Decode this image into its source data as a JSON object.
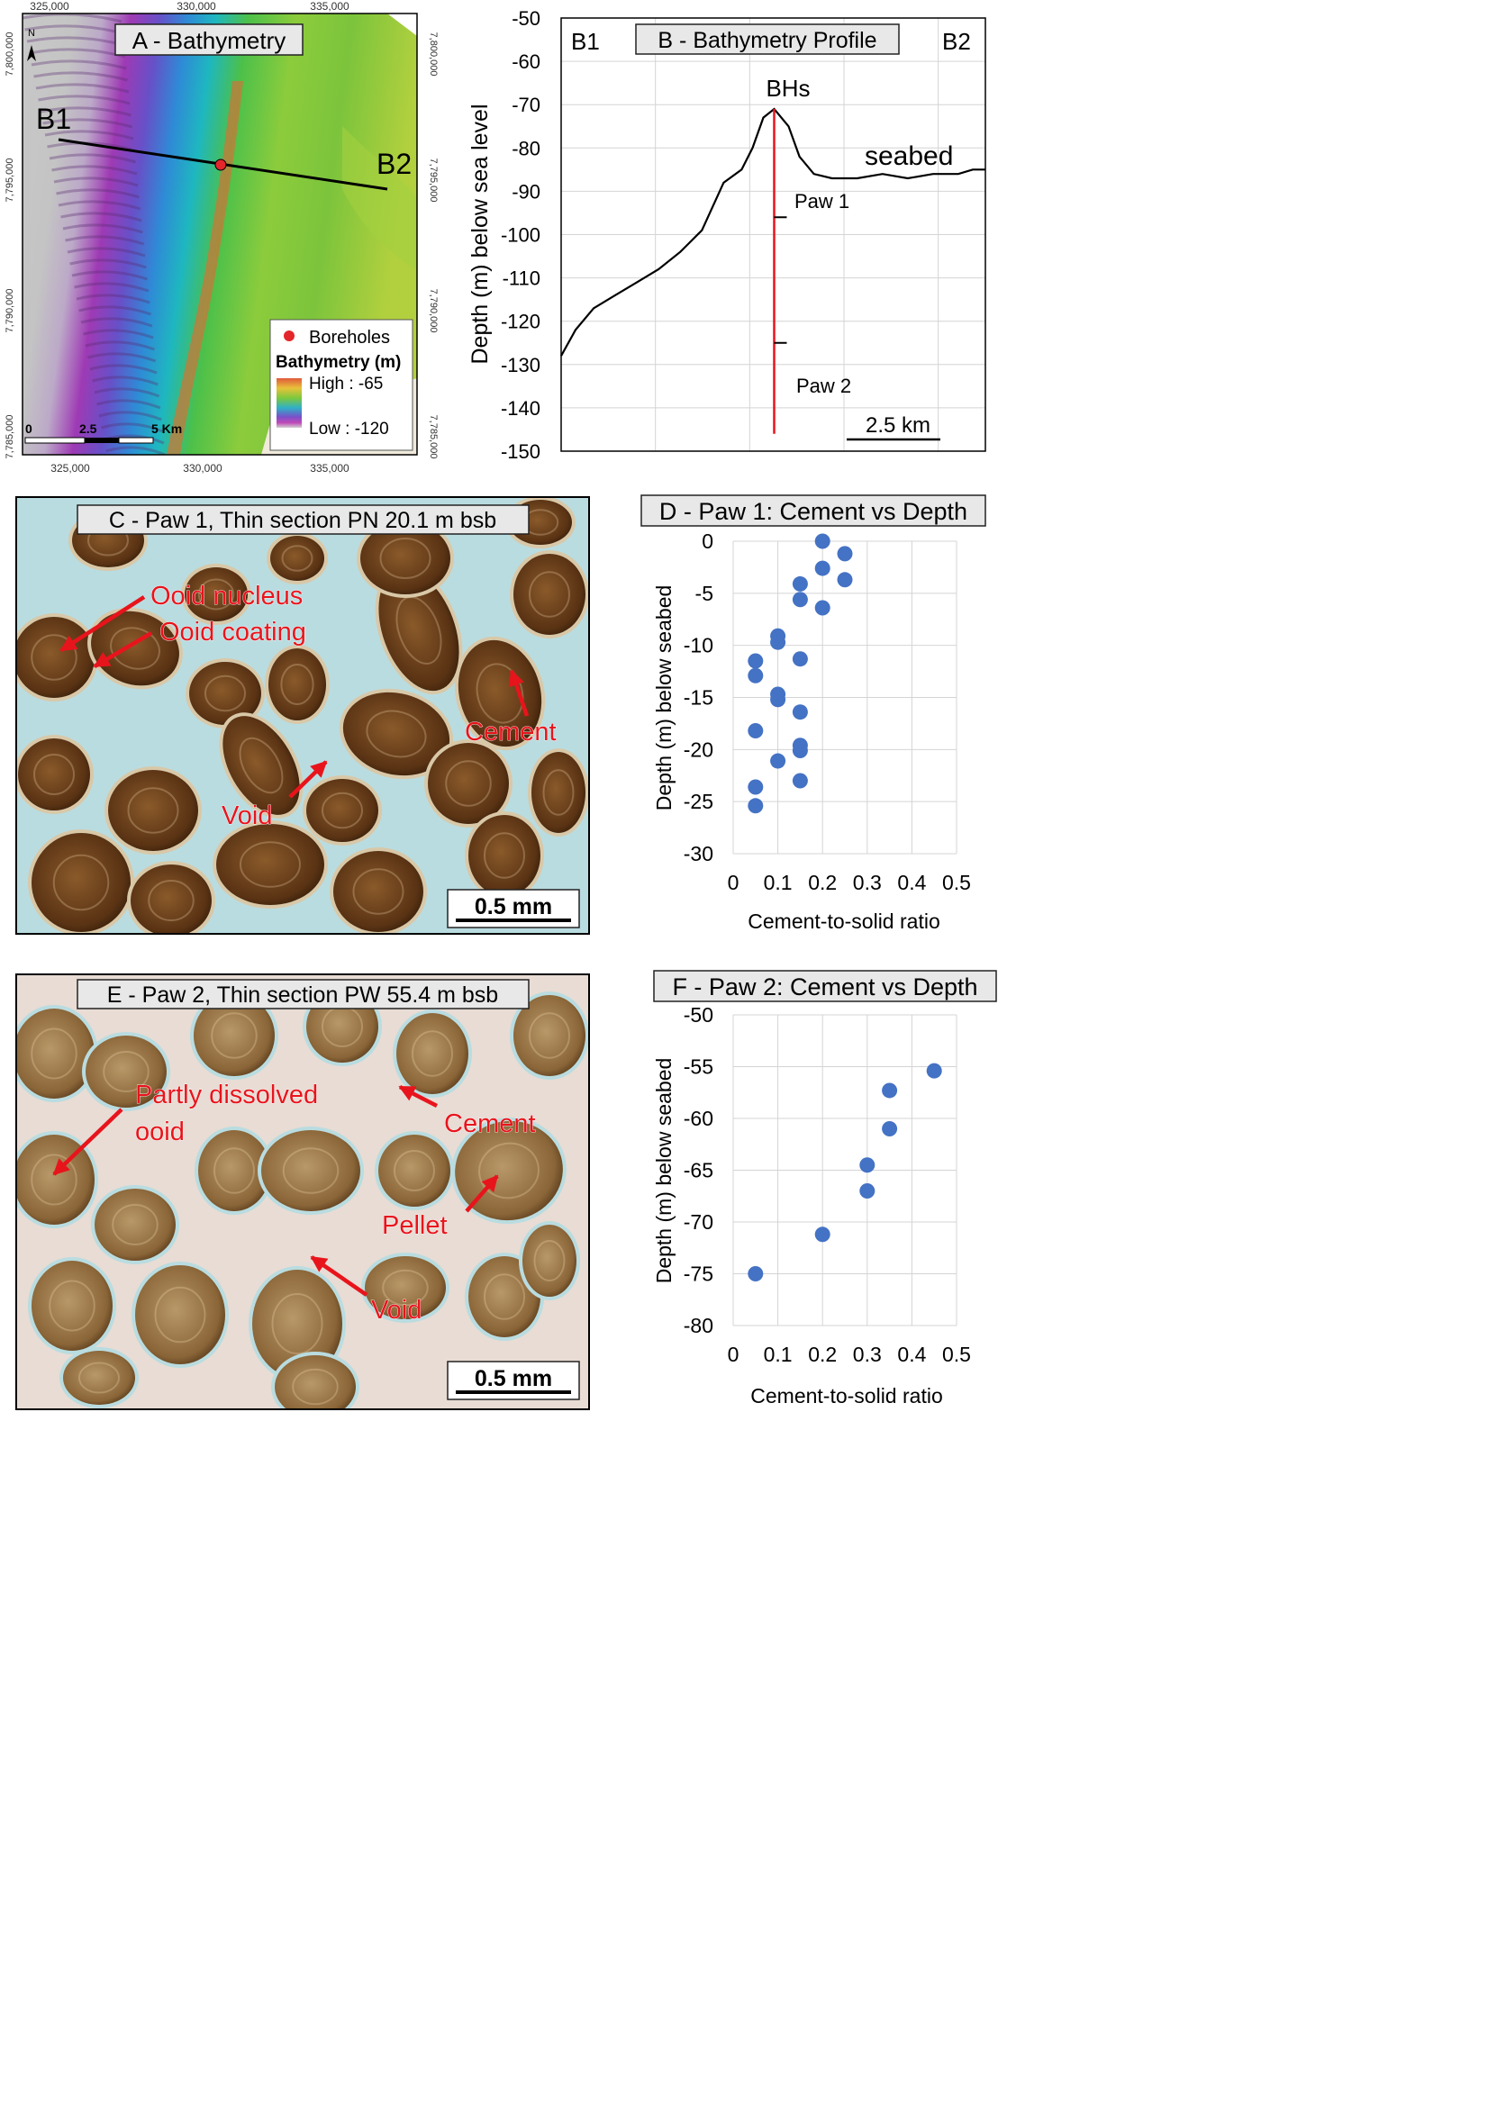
{
  "colors": {
    "label_red": "#e8141c",
    "dot_blue": "#4472c4",
    "borehole_red": "#e3262b",
    "cement_blue": "#b9dce0"
  },
  "panel_a": {
    "title": "A - Bathymetry",
    "north": "N",
    "section_start": "B1",
    "section_end": "B2",
    "x_ticks": [
      "325,000",
      "330,000",
      "335,000"
    ],
    "y_ticks": [
      "7,800,000",
      "7,795,000",
      "7,790,000",
      "7,785,000"
    ],
    "scale_labels": [
      "0",
      "2.5",
      "5 Km"
    ],
    "legend": {
      "boreholes": "Boreholes",
      "title": "Bathymetry (m)",
      "high": "High : -65",
      "low": "Low : -120"
    }
  },
  "panel_b": {
    "title": "B - Bathymetry Profile",
    "left_label": "B1",
    "right_label": "B2",
    "ylabel": "Depth (m) below sea level",
    "y_ticks": [
      "-50",
      "-60",
      "-70",
      "-80",
      "-90",
      "-100",
      "-110",
      "-120",
      "-130",
      "-140",
      "-150"
    ],
    "bhs_label": "BHs",
    "seabed_label": "seabed",
    "paw1_label": "Paw 1",
    "paw2_label": "Paw 2",
    "scale_label": "2.5 km"
  },
  "panel_c": {
    "title": "C - Paw 1, Thin section PN 20.1 m bsb",
    "labels": [
      "Ooid nucleus",
      "Ooid coating",
      "Cement",
      "Void"
    ],
    "scale": "0.5 mm"
  },
  "panel_e": {
    "title": "E - Paw 2, Thin section PW 55.4 m bsb",
    "labels": [
      "Partly dissolved",
      "ooid",
      "Cement",
      "Pellet",
      "Void"
    ],
    "scale": "0.5 mm"
  },
  "chart_data": [
    {
      "type": "line",
      "title": "B - Bathymetry Profile",
      "ylabel": "Depth (m) below sea level",
      "ylim": [
        -150,
        -50
      ],
      "x_unit": "distance along B1-B2 (km)",
      "xlim": [
        0,
        11.75
      ],
      "series": [
        {
          "name": "seabed",
          "x": [
            0,
            0.4,
            0.9,
            1.5,
            2.1,
            2.7,
            3.3,
            3.9,
            4.5,
            5.0,
            5.3,
            5.6,
            5.9,
            6.3,
            6.6,
            7.0,
            7.5,
            8.2,
            8.9,
            9.6,
            10.3,
            11.0,
            11.4,
            11.75
          ],
          "y": [
            -128,
            -122,
            -117,
            -114,
            -111,
            -108,
            -104,
            -99,
            -88,
            -85,
            -80,
            -73,
            -71,
            -75,
            -82,
            -86,
            -87,
            -87,
            -86,
            -87,
            -86,
            -86,
            -85,
            -85
          ]
        }
      ],
      "boreholes": {
        "x": 5.9,
        "top": -71,
        "bottom": -146,
        "paw1_tick": -96,
        "paw2_tick": -125
      },
      "scale_bar_km": 2.5
    },
    {
      "type": "scatter",
      "title": "D - Paw 1: Cement vs Depth",
      "xlabel": "Cement-to-solid ratio",
      "ylabel": "Depth (m) below seabed",
      "xlim": [
        0,
        0.5
      ],
      "ylim": [
        -30,
        0
      ],
      "x_ticks": [
        "0",
        "0.1",
        "0.2",
        "0.3",
        "0.4",
        "0.5"
      ],
      "y_ticks": [
        "0",
        "-5",
        "-10",
        "-15",
        "-20",
        "-25",
        "-30"
      ],
      "x": [
        0.2,
        0.25,
        0.2,
        0.25,
        0.15,
        0.15,
        0.2,
        0.1,
        0.1,
        0.05,
        0.15,
        0.05,
        0.1,
        0.1,
        0.15,
        0.05,
        0.15,
        0.15,
        0.1,
        0.15,
        0.05,
        0.05
      ],
      "y": [
        0,
        -1.2,
        -2.6,
        -3.7,
        -4.1,
        -5.6,
        -6.4,
        -9.1,
        -9.7,
        -11.5,
        -11.3,
        -12.9,
        -14.7,
        -15.2,
        -16.4,
        -18.2,
        -19.6,
        -20.1,
        -21.1,
        -23.0,
        -23.6,
        -25.4
      ]
    },
    {
      "type": "scatter",
      "title": "F - Paw 2: Cement vs Depth",
      "xlabel": "Cement-to-solid ratio",
      "ylabel": "Depth (m) below seabed",
      "xlim": [
        0,
        0.5
      ],
      "ylim": [
        -80,
        -50
      ],
      "x_ticks": [
        "0",
        "0.1",
        "0.2",
        "0.3",
        "0.4",
        "0.5"
      ],
      "y_ticks": [
        "-50",
        "-55",
        "-60",
        "-65",
        "-70",
        "-75",
        "-80"
      ],
      "x": [
        0.45,
        0.35,
        0.35,
        0.3,
        0.3,
        0.2,
        0.05
      ],
      "y": [
        -55.4,
        -57.3,
        -61.0,
        -64.5,
        -67.0,
        -71.2,
        -75.0
      ]
    }
  ]
}
